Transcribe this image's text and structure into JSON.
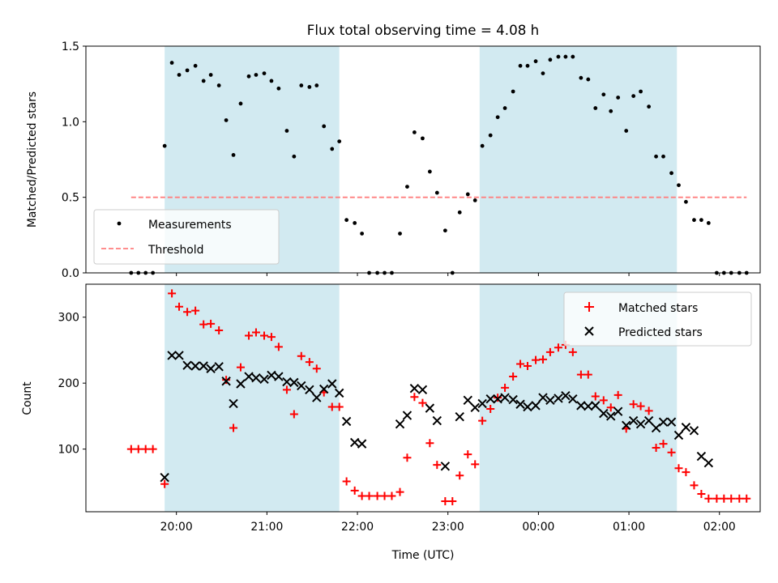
{
  "chart_data": [
    {
      "type": "scatter",
      "title": "Flux total observing time = 4.08 h",
      "xlabel": "",
      "ylabel": "Matched/Predicted stars",
      "ylim": [
        0,
        1.5
      ],
      "yticks": [
        "0.0",
        "0.5",
        "1.0",
        "1.5"
      ],
      "xlim_hours": [
        19.0,
        26.45
      ],
      "shaded_regions": [
        [
          19.87,
          21.8
        ],
        [
          23.35,
          25.53
        ]
      ],
      "shade_color": "#add8e6",
      "legend_placement": "lower-left",
      "series": [
        {
          "name": "Measurements",
          "color": "#000000",
          "marker": "dot",
          "points": [
            [
              19.5,
              0
            ],
            [
              19.58,
              0
            ],
            [
              19.66,
              0
            ],
            [
              19.74,
              0
            ],
            [
              19.87,
              0.84
            ],
            [
              19.95,
              1.39
            ],
            [
              20.03,
              1.31
            ],
            [
              20.12,
              1.34
            ],
            [
              20.21,
              1.37
            ],
            [
              20.3,
              1.27
            ],
            [
              20.38,
              1.31
            ],
            [
              20.47,
              1.24
            ],
            [
              20.55,
              1.01
            ],
            [
              20.63,
              0.78
            ],
            [
              20.71,
              1.12
            ],
            [
              20.8,
              1.3
            ],
            [
              20.88,
              1.31
            ],
            [
              20.97,
              1.32
            ],
            [
              21.05,
              1.27
            ],
            [
              21.13,
              1.22
            ],
            [
              21.22,
              0.94
            ],
            [
              21.3,
              0.77
            ],
            [
              21.38,
              1.24
            ],
            [
              21.47,
              1.23
            ],
            [
              21.55,
              1.24
            ],
            [
              21.63,
              0.97
            ],
            [
              21.72,
              0.82
            ],
            [
              21.8,
              0.87
            ],
            [
              21.88,
              0.35
            ],
            [
              21.97,
              0.33
            ],
            [
              22.05,
              0.26
            ],
            [
              22.13,
              0
            ],
            [
              22.22,
              0
            ],
            [
              22.3,
              0
            ],
            [
              22.38,
              0
            ],
            [
              22.47,
              0.26
            ],
            [
              22.55,
              0.57
            ],
            [
              22.63,
              0.93
            ],
            [
              22.72,
              0.89
            ],
            [
              22.8,
              0.67
            ],
            [
              22.88,
              0.53
            ],
            [
              22.97,
              0.28
            ],
            [
              23.05,
              0
            ],
            [
              23.13,
              0.4
            ],
            [
              23.22,
              0.52
            ],
            [
              23.3,
              0.48
            ],
            [
              23.38,
              0.84
            ],
            [
              23.47,
              0.91
            ],
            [
              23.55,
              1.03
            ],
            [
              23.63,
              1.09
            ],
            [
              23.72,
              1.2
            ],
            [
              23.8,
              1.37
            ],
            [
              23.88,
              1.37
            ],
            [
              23.97,
              1.4
            ],
            [
              24.05,
              1.32
            ],
            [
              24.13,
              1.41
            ],
            [
              24.22,
              1.43
            ],
            [
              24.3,
              1.43
            ],
            [
              24.38,
              1.43
            ],
            [
              24.47,
              1.29
            ],
            [
              24.55,
              1.28
            ],
            [
              24.63,
              1.09
            ],
            [
              24.72,
              1.18
            ],
            [
              24.8,
              1.07
            ],
            [
              24.88,
              1.16
            ],
            [
              24.97,
              0.94
            ],
            [
              25.05,
              1.17
            ],
            [
              25.13,
              1.2
            ],
            [
              25.22,
              1.1
            ],
            [
              25.3,
              0.77
            ],
            [
              25.38,
              0.77
            ],
            [
              25.47,
              0.66
            ],
            [
              25.55,
              0.58
            ],
            [
              25.63,
              0.47
            ],
            [
              25.72,
              0.35
            ],
            [
              25.8,
              0.35
            ],
            [
              25.88,
              0.33
            ],
            [
              25.97,
              0
            ],
            [
              26.05,
              0
            ],
            [
              26.13,
              0
            ],
            [
              26.22,
              0
            ],
            [
              26.3,
              0
            ]
          ]
        },
        {
          "name": "Threshold",
          "color": "#ff7f7f",
          "style": "dashed",
          "x_range": [
            19.5,
            26.3
          ],
          "value": 0.5
        }
      ]
    },
    {
      "type": "scatter",
      "title": "",
      "xlabel": "Time (UTC)",
      "ylabel": "Count",
      "ylim": [
        5,
        350
      ],
      "yticks": [
        "100",
        "200",
        "300"
      ],
      "xlim_hours": [
        19.0,
        26.45
      ],
      "xticks": [
        "20:00",
        "21:00",
        "22:00",
        "23:00",
        "00:00",
        "01:00",
        "02:00"
      ],
      "shaded_regions": [
        [
          19.87,
          21.8
        ],
        [
          23.35,
          25.53
        ]
      ],
      "shade_color": "#add8e6",
      "legend_placement": "upper-right",
      "series": [
        {
          "name": "Matched stars",
          "color": "#ff0000",
          "marker": "plus",
          "points": [
            [
              19.5,
              100
            ],
            [
              19.58,
              100
            ],
            [
              19.66,
              100
            ],
            [
              19.74,
              100
            ],
            [
              19.87,
              47
            ],
            [
              19.95,
              336
            ],
            [
              20.03,
              316
            ],
            [
              20.12,
              308
            ],
            [
              20.21,
              310
            ],
            [
              20.3,
              289
            ],
            [
              20.38,
              290
            ],
            [
              20.47,
              280
            ],
            [
              20.55,
              205
            ],
            [
              20.63,
              132
            ],
            [
              20.71,
              224
            ],
            [
              20.8,
              272
            ],
            [
              20.88,
              277
            ],
            [
              20.97,
              272
            ],
            [
              21.05,
              270
            ],
            [
              21.13,
              255
            ],
            [
              21.22,
              190
            ],
            [
              21.3,
              153
            ],
            [
              21.38,
              241
            ],
            [
              21.47,
              232
            ],
            [
              21.55,
              222
            ],
            [
              21.63,
              186
            ],
            [
              21.72,
              164
            ],
            [
              21.8,
              164
            ],
            [
              21.88,
              51
            ],
            [
              21.97,
              37
            ],
            [
              22.05,
              29
            ],
            [
              22.13,
              29
            ],
            [
              22.22,
              29
            ],
            [
              22.3,
              29
            ],
            [
              22.38,
              29
            ],
            [
              22.47,
              35
            ],
            [
              22.55,
              87
            ],
            [
              22.63,
              179
            ],
            [
              22.72,
              170
            ],
            [
              22.8,
              109
            ],
            [
              22.88,
              76
            ],
            [
              22.97,
              21
            ],
            [
              23.05,
              21
            ],
            [
              23.13,
              60
            ],
            [
              23.22,
              92
            ],
            [
              23.3,
              77
            ],
            [
              23.38,
              143
            ],
            [
              23.47,
              161
            ],
            [
              23.55,
              178
            ],
            [
              23.63,
              193
            ],
            [
              23.72,
              210
            ],
            [
              23.8,
              229
            ],
            [
              23.88,
              226
            ],
            [
              23.97,
              235
            ],
            [
              24.05,
              236
            ],
            [
              24.13,
              247
            ],
            [
              24.22,
              254
            ],
            [
              24.3,
              258
            ],
            [
              24.38,
              247
            ],
            [
              24.47,
              213
            ],
            [
              24.55,
              213
            ],
            [
              24.63,
              180
            ],
            [
              24.72,
              174
            ],
            [
              24.8,
              163
            ],
            [
              24.88,
              182
            ],
            [
              24.97,
              131
            ],
            [
              25.05,
              168
            ],
            [
              25.13,
              165
            ],
            [
              25.22,
              158
            ],
            [
              25.3,
              102
            ],
            [
              25.38,
              108
            ],
            [
              25.47,
              95
            ],
            [
              25.55,
              71
            ],
            [
              25.63,
              65
            ],
            [
              25.72,
              45
            ],
            [
              25.8,
              32
            ],
            [
              25.88,
              25
            ],
            [
              25.97,
              25
            ],
            [
              26.05,
              25
            ],
            [
              26.13,
              25
            ],
            [
              26.22,
              25
            ],
            [
              26.3,
              25
            ]
          ]
        },
        {
          "name": "Predicted stars",
          "color": "#000000",
          "marker": "x",
          "points": [
            [
              19.87,
              57
            ],
            [
              19.95,
              242
            ],
            [
              20.03,
              242
            ],
            [
              20.12,
              227
            ],
            [
              20.21,
              226
            ],
            [
              20.3,
              226
            ],
            [
              20.38,
              222
            ],
            [
              20.47,
              225
            ],
            [
              20.55,
              203
            ],
            [
              20.63,
              169
            ],
            [
              20.71,
              199
            ],
            [
              20.8,
              210
            ],
            [
              20.88,
              208
            ],
            [
              20.97,
              206
            ],
            [
              21.05,
              212
            ],
            [
              21.13,
              210
            ],
            [
              21.22,
              202
            ],
            [
              21.3,
              201
            ],
            [
              21.38,
              196
            ],
            [
              21.47,
              190
            ],
            [
              21.55,
              178
            ],
            [
              21.63,
              191
            ],
            [
              21.72,
              199
            ],
            [
              21.8,
              185
            ],
            [
              21.88,
              142
            ],
            [
              21.97,
              110
            ],
            [
              22.05,
              108
            ],
            [
              22.47,
              138
            ],
            [
              22.55,
              151
            ],
            [
              22.63,
              192
            ],
            [
              22.72,
              190
            ],
            [
              22.8,
              162
            ],
            [
              22.88,
              143
            ],
            [
              22.97,
              74
            ],
            [
              23.13,
              149
            ],
            [
              23.22,
              174
            ],
            [
              23.3,
              163
            ],
            [
              23.38,
              169
            ],
            [
              23.47,
              176
            ],
            [
              23.55,
              176
            ],
            [
              23.63,
              178
            ],
            [
              23.72,
              175
            ],
            [
              23.8,
              168
            ],
            [
              23.88,
              164
            ],
            [
              23.97,
              166
            ],
            [
              24.05,
              178
            ],
            [
              24.13,
              174
            ],
            [
              24.22,
              177
            ],
            [
              24.3,
              181
            ],
            [
              24.38,
              176
            ],
            [
              24.47,
              166
            ],
            [
              24.55,
              165
            ],
            [
              24.63,
              166
            ],
            [
              24.72,
              154
            ],
            [
              24.8,
              150
            ],
            [
              24.88,
              157
            ],
            [
              24.97,
              136
            ],
            [
              25.05,
              143
            ],
            [
              25.13,
              138
            ],
            [
              25.22,
              143
            ],
            [
              25.3,
              132
            ],
            [
              25.38,
              141
            ],
            [
              25.47,
              141
            ],
            [
              25.55,
              121
            ],
            [
              25.63,
              133
            ],
            [
              25.72,
              128
            ],
            [
              25.8,
              89
            ],
            [
              25.88,
              79
            ]
          ]
        }
      ]
    }
  ]
}
